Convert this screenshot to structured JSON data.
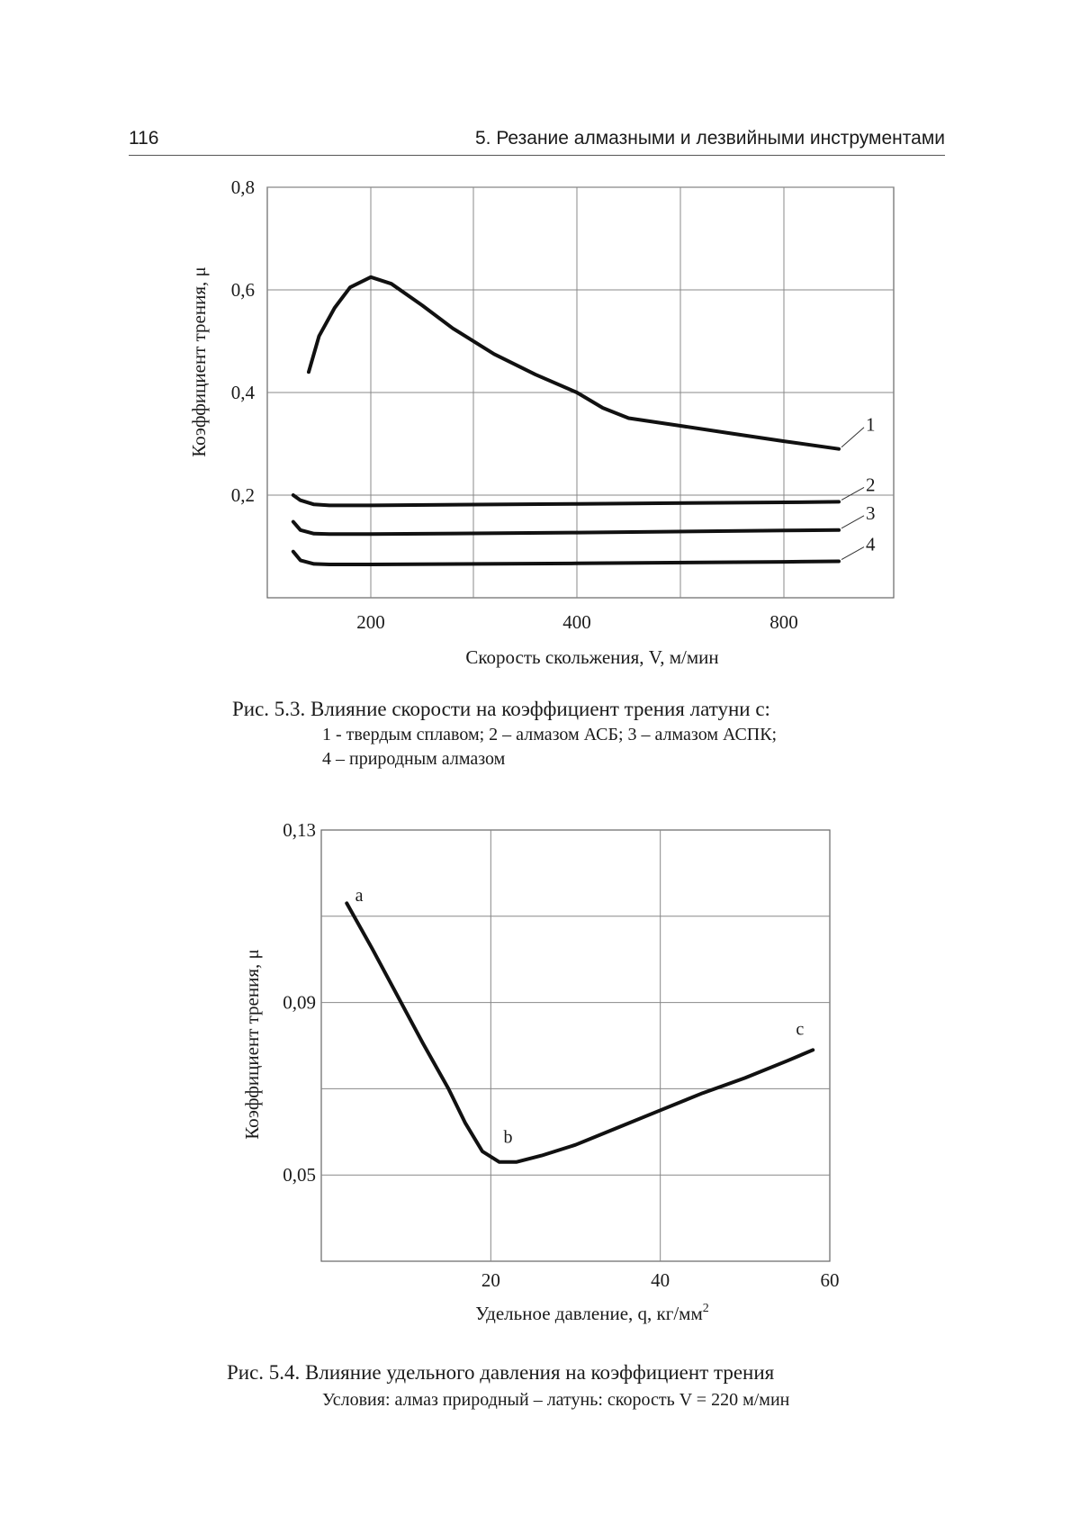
{
  "header": {
    "page_number": "116",
    "running_title": "5. Резание алмазными и лезвийными инструментами"
  },
  "figures": [
    {
      "caption": {
        "title": "Рис. 5.3. Влияние скорости на коэффициент трения латуни с:",
        "line2": "1 - твердым сплавом; 2 – алмазом АСБ; 3 – алмазом АСПК;",
        "line3": "4 – природным алмазом"
      }
    },
    {
      "caption": {
        "title": "Рис. 5.4. Влияние удельного давления на коэффициент трения",
        "line2": "Условия: алмаз природный – латунь: скорость V = 220 м/мин"
      }
    }
  ],
  "chart_data": [
    {
      "type": "line",
      "xlabel": "Скорость скольжения,  V,  м/мин",
      "ylabel": "Коэффициент трения,  μ",
      "x_ticks": [
        "200",
        "400",
        "800"
      ],
      "x_tick_values": [
        200,
        400,
        800
      ],
      "x_scale": "nonlinear (tick labels 200, 400, 800 at equal grid spacing; grid lines at 200, 300, 400, 600, 800)",
      "y_ticks": [
        "0,2",
        "0,4",
        "0,6",
        "0,8"
      ],
      "y_tick_values": [
        0.2,
        0.4,
        0.6,
        0.8
      ],
      "ylim": [
        0,
        0.8
      ],
      "grid": true,
      "series": [
        {
          "name": "1",
          "x": [
            140,
            150,
            165,
            180,
            200,
            220,
            250,
            280,
            320,
            360,
            400,
            450,
            500,
            600,
            700,
            800,
            900
          ],
          "y": [
            0.44,
            0.51,
            0.565,
            0.605,
            0.625,
            0.612,
            0.57,
            0.525,
            0.475,
            0.435,
            0.4,
            0.37,
            0.35,
            0.335,
            0.32,
            0.305,
            0.29
          ]
        },
        {
          "name": "2",
          "x": [
            125,
            132,
            145,
            160,
            200,
            400,
            800,
            900
          ],
          "y": [
            0.2,
            0.19,
            0.182,
            0.18,
            0.18,
            0.183,
            0.186,
            0.187
          ]
        },
        {
          "name": "3",
          "x": [
            125,
            132,
            145,
            160,
            200,
            400,
            800,
            900
          ],
          "y": [
            0.148,
            0.132,
            0.125,
            0.124,
            0.124,
            0.127,
            0.131,
            0.132
          ]
        },
        {
          "name": "4",
          "x": [
            125,
            132,
            145,
            160,
            200,
            400,
            800,
            900
          ],
          "y": [
            0.09,
            0.073,
            0.066,
            0.065,
            0.065,
            0.067,
            0.07,
            0.071
          ]
        }
      ]
    },
    {
      "type": "line",
      "xlabel": "Удельное давление, q,  кг/мм",
      "xlabel_superscript": "2",
      "ylabel": "Коэффициент трения, μ",
      "x_ticks": [
        "20",
        "40",
        "60"
      ],
      "x_tick_values": [
        20,
        40,
        60
      ],
      "xlim": [
        0,
        60
      ],
      "y_ticks": [
        "0,05",
        "0,09",
        "0,13"
      ],
      "y_tick_values": [
        0.05,
        0.09,
        0.13
      ],
      "ylim": [
        0.03,
        0.13
      ],
      "grid": true,
      "annotations": [
        {
          "text": "a",
          "x": 4,
          "y": 0.1135
        },
        {
          "text": "b",
          "x": 21.5,
          "y": 0.0575
        },
        {
          "text": "c",
          "x": 56,
          "y": 0.0825
        }
      ],
      "series": [
        {
          "x": [
            3,
            6,
            9,
            12,
            15,
            17,
            19,
            21,
            23,
            26,
            30,
            35,
            40,
            45,
            50,
            55,
            58
          ],
          "y": [
            0.113,
            0.1025,
            0.0915,
            0.0805,
            0.07,
            0.062,
            0.0555,
            0.053,
            0.053,
            0.0545,
            0.057,
            0.061,
            0.065,
            0.069,
            0.0725,
            0.0765,
            0.079
          ]
        }
      ]
    }
  ]
}
